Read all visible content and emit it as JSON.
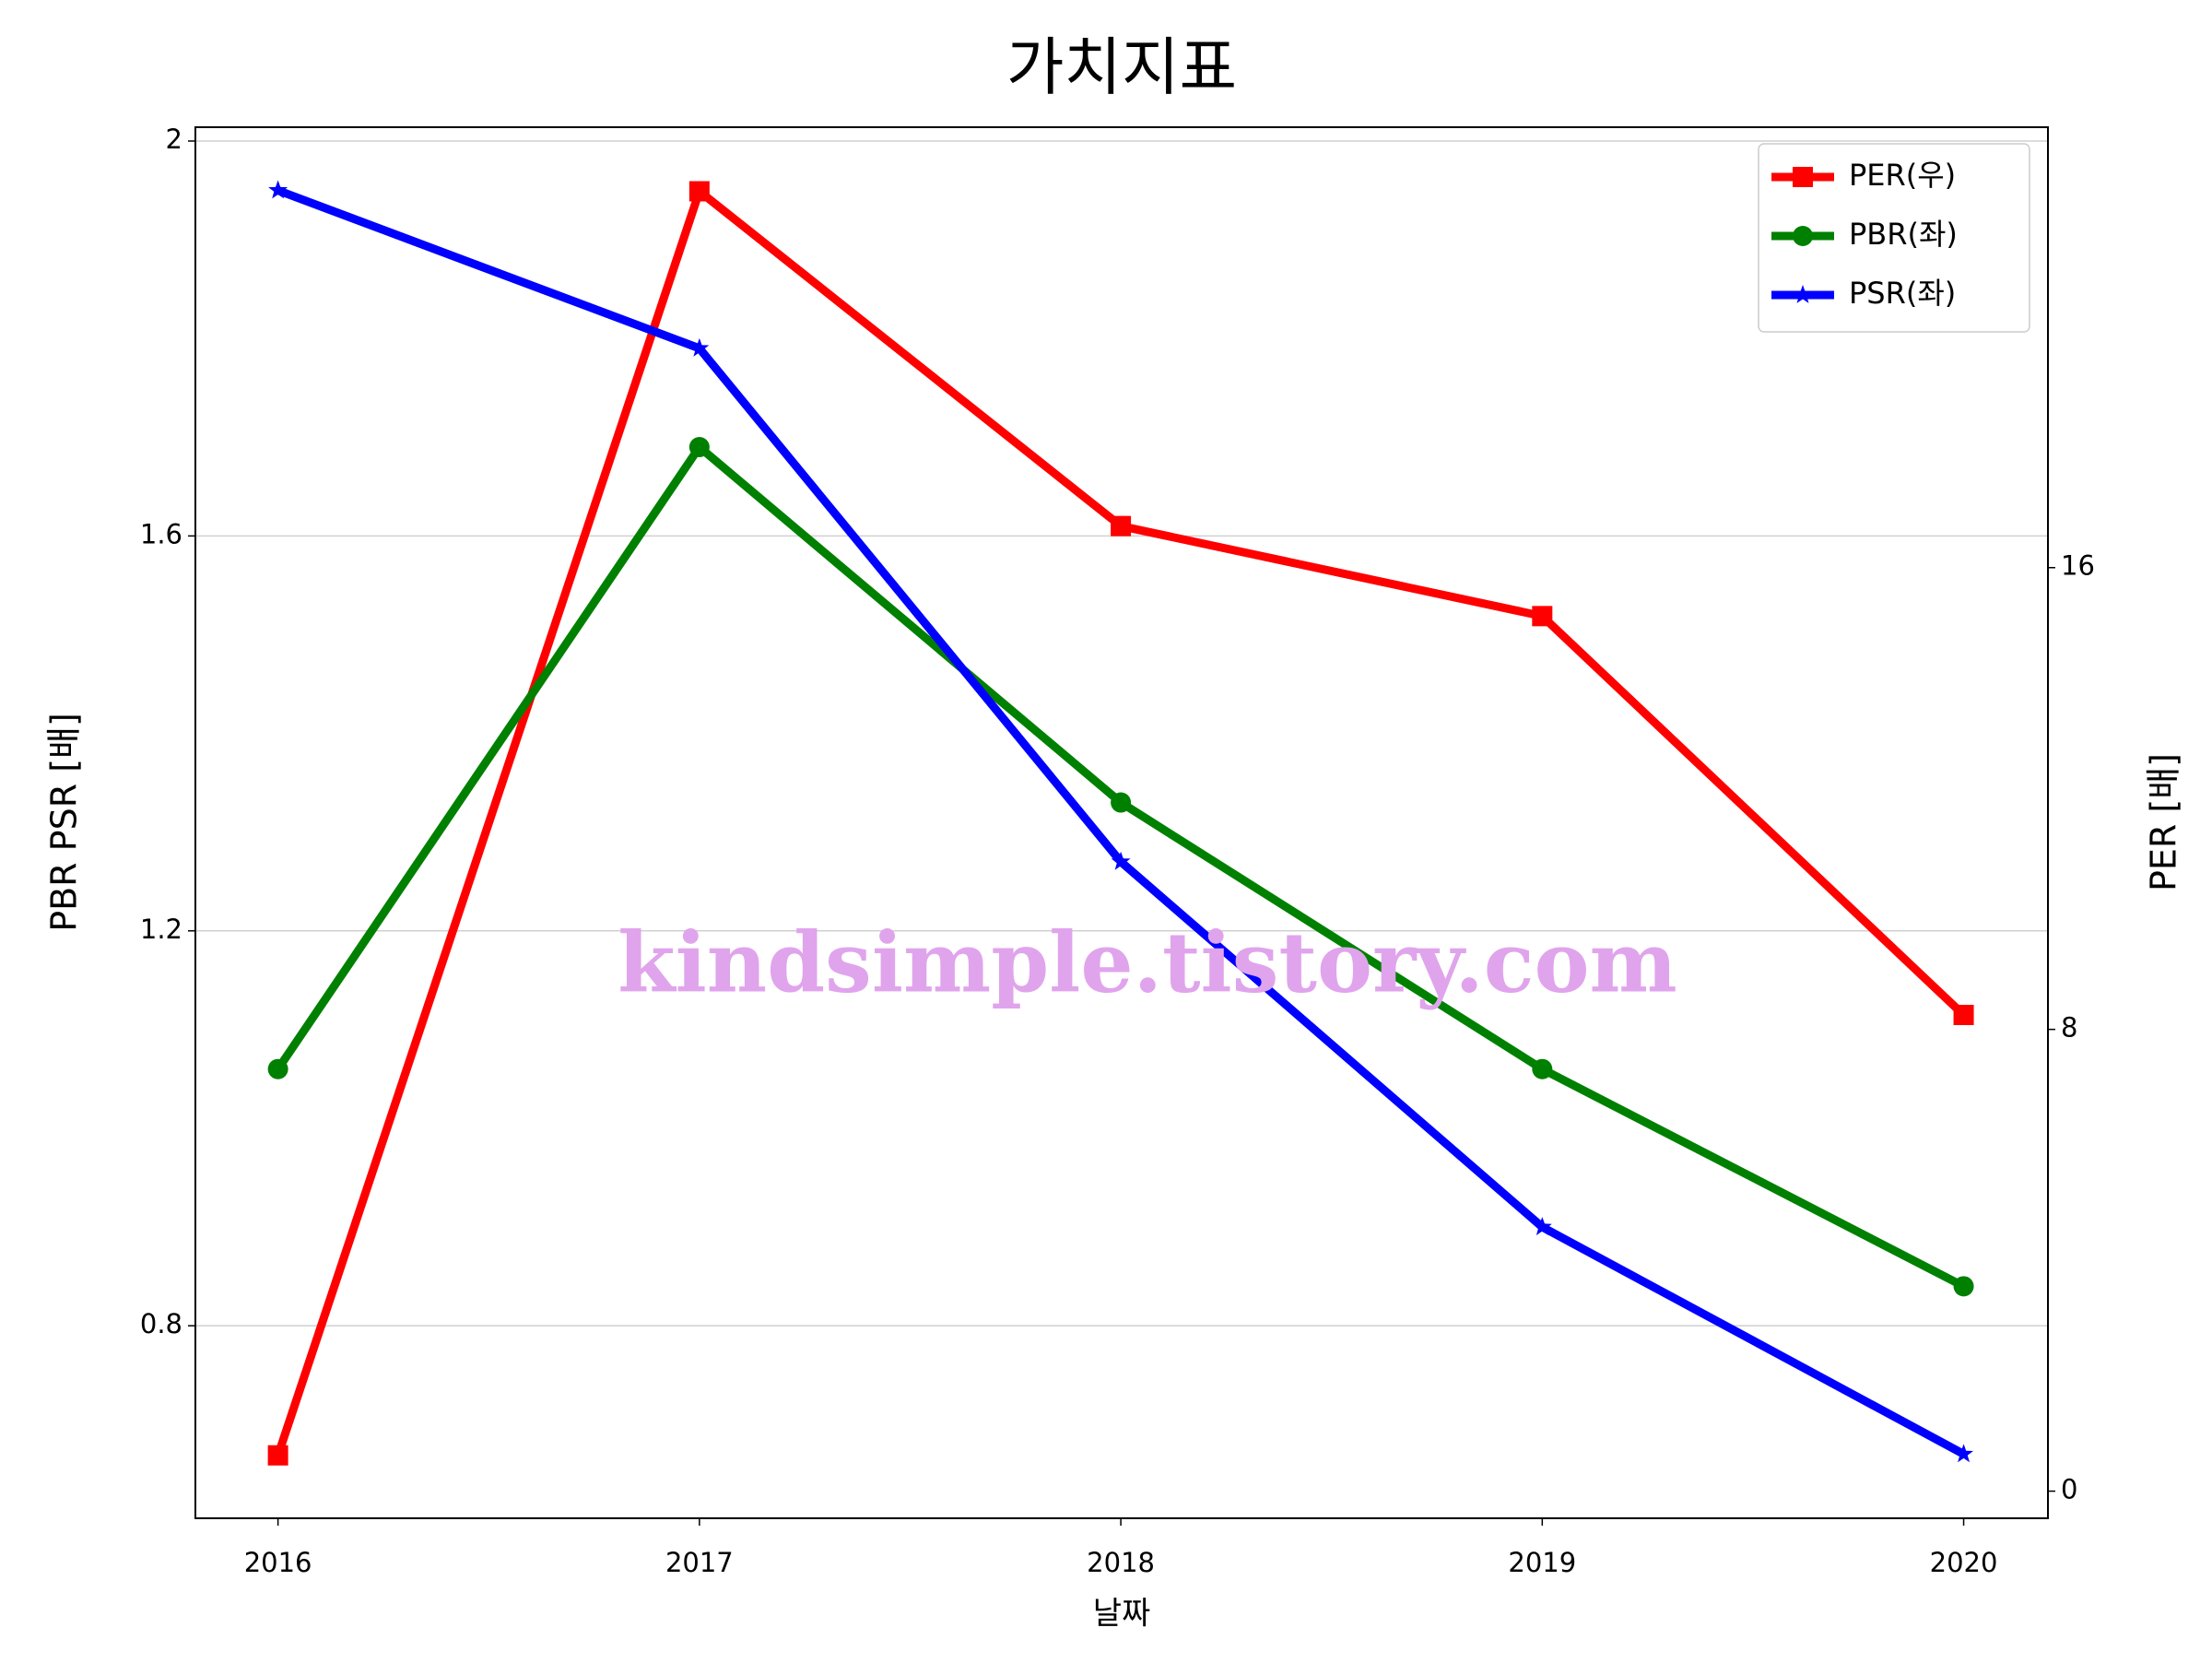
{
  "chart_data": {
    "type": "line",
    "title": "가치지표",
    "x_label": "날짜",
    "y_label": "PBR PSR [배]",
    "y2_label": "PER [배]",
    "watermark": "kindsimple.tistory.com",
    "x": [
      2016,
      2017,
      2018,
      2019,
      2020
    ],
    "series": [
      {
        "name": "PER(우)",
        "color": "#ff0000",
        "marker": "square",
        "axis": "y2",
        "values": [
          0.62,
          22.52,
          16.72,
          15.16,
          8.25
        ]
      },
      {
        "name": "PBR(좌)",
        "color": "#008000",
        "marker": "circle",
        "values": [
          1.06,
          1.69,
          1.33,
          1.06,
          0.84
        ]
      },
      {
        "name": "PSR(좌)",
        "color": "#0000ff",
        "marker": "star",
        "values": [
          1.95,
          1.79,
          1.27,
          0.9,
          0.67
        ]
      }
    ],
    "xlim": [
      2015.804,
      2020.2
    ],
    "xticks": [
      2016,
      2017,
      2018,
      2019,
      2020
    ],
    "ylim": [
      0.605,
      2.014
    ],
    "yticks": [
      0.8,
      1.2,
      1.6,
      2.0
    ],
    "y2lim": [
      -0.47,
      23.63
    ],
    "y2ticks": [
      0,
      8,
      16
    ],
    "grid": true,
    "legend": "upper right",
    "y_label_color": "#008000",
    "y2_label_color": "#ff0000"
  }
}
